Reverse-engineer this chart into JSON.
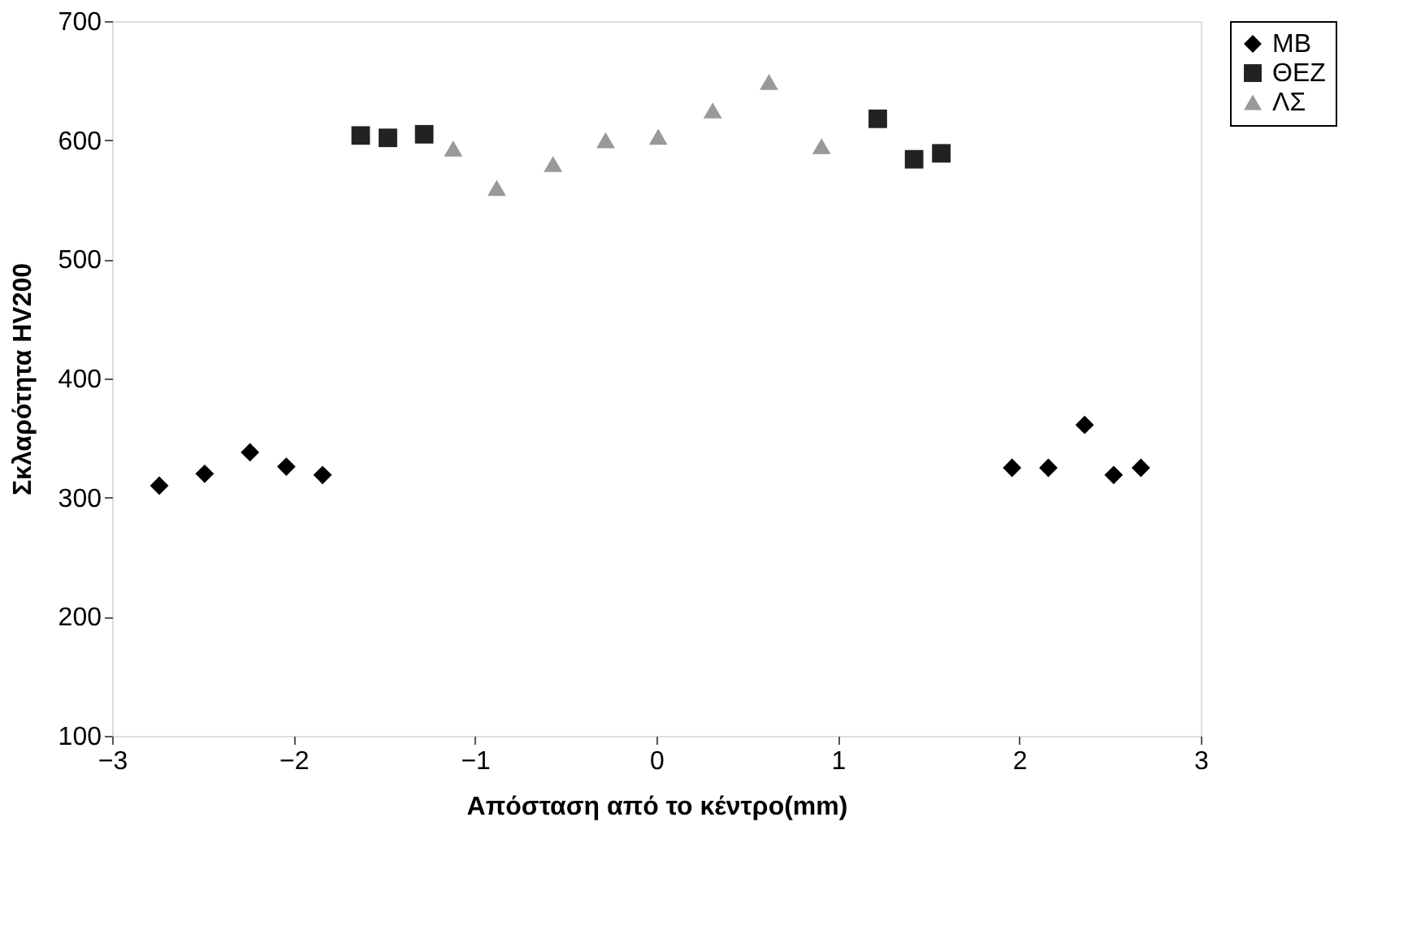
{
  "chart_data": {
    "type": "scatter",
    "xlabel": "Απόσταση από το κέντρο(mm)",
    "ylabel": "Σκλαρότητα HV200",
    "xlim": [
      -3,
      3
    ],
    "xticks": [
      -3,
      -2,
      -1,
      0,
      1,
      2,
      3
    ],
    "ylim": [
      100,
      700
    ],
    "yticks": [
      100,
      200,
      300,
      400,
      500,
      600,
      700
    ],
    "grid": false,
    "legend": "right",
    "series": [
      {
        "name": "MB",
        "color": "#000000",
        "marker": "diamond",
        "x": [
          -2.74,
          -2.49,
          -2.24,
          -2.04,
          -1.84,
          1.96,
          2.16,
          2.36,
          2.52,
          2.67
        ],
        "values": [
          310,
          320,
          338,
          326,
          319,
          325,
          325,
          361,
          319,
          325
        ]
      },
      {
        "name": "ΘΕΖ",
        "color": "#222222",
        "marker": "square",
        "x": [
          -1.63,
          -1.48,
          -1.28,
          1.22,
          1.42,
          1.57
        ],
        "values": [
          604,
          602,
          605,
          618,
          584,
          589
        ]
      },
      {
        "name": "ΛΣ",
        "color": "#999999",
        "marker": "triangle",
        "x": [
          -1.12,
          -0.88,
          -0.57,
          -0.28,
          0.01,
          0.31,
          0.62,
          0.91
        ],
        "values": [
          593,
          560,
          580,
          600,
          603,
          625,
          649,
          595
        ]
      }
    ]
  }
}
